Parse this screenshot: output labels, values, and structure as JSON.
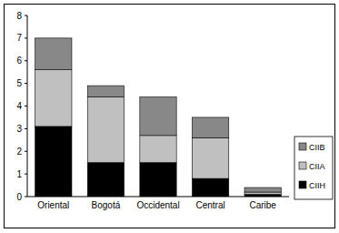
{
  "chart_data": {
    "type": "bar",
    "stacked": true,
    "categories": [
      "Oriental",
      "Bogotá",
      "Occidental",
      "Central",
      "Caribe"
    ],
    "series": [
      {
        "name": "CIIH",
        "color": "#000000",
        "values": [
          3.1,
          1.5,
          1.5,
          0.8,
          0.1
        ]
      },
      {
        "name": "CIIA",
        "color": "#c0c0c0",
        "values": [
          2.5,
          2.9,
          1.2,
          1.8,
          0.1
        ]
      },
      {
        "name": "CIIB",
        "color": "#888888",
        "values": [
          1.4,
          0.5,
          1.7,
          0.9,
          0.2
        ]
      }
    ],
    "ylim": [
      0,
      8
    ],
    "yticks": [
      0,
      1,
      2,
      3,
      4,
      5,
      6,
      7,
      8
    ],
    "grid": false,
    "legend": "right"
  }
}
